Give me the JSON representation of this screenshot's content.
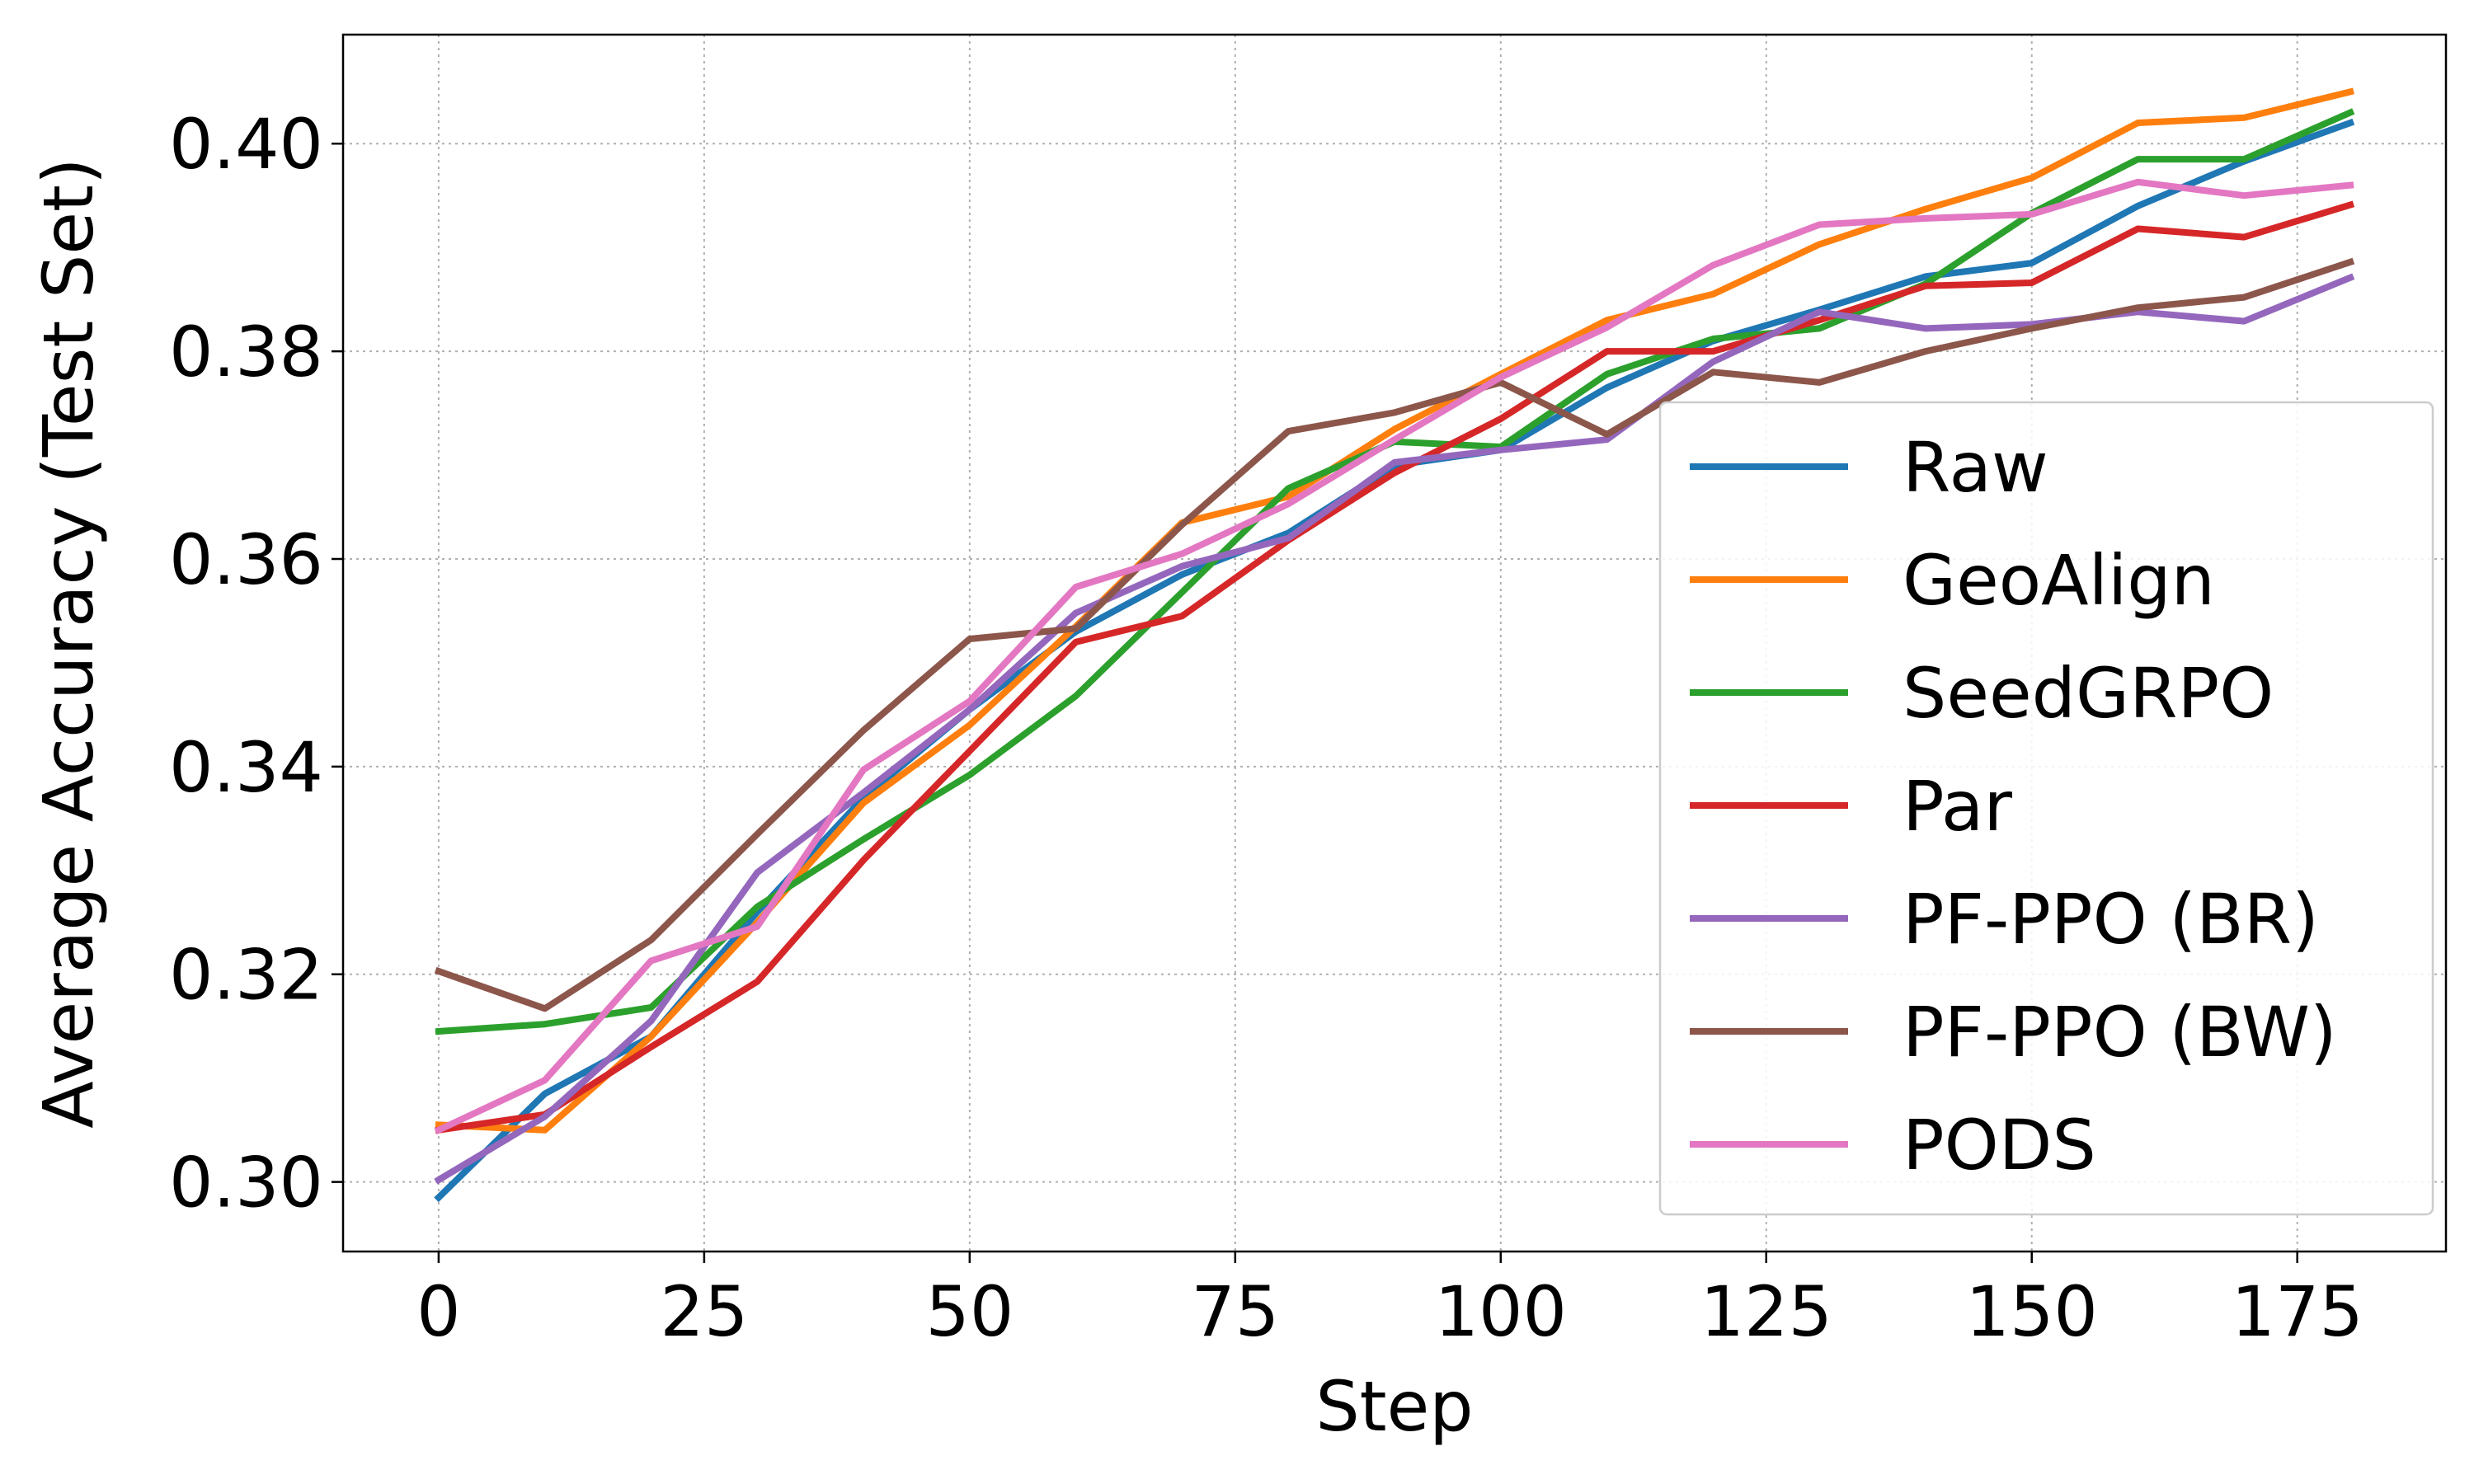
{
  "chart_data": {
    "type": "line",
    "title": "",
    "xlabel": "Step",
    "ylabel": "Average Accuracy (Test Set)",
    "xlim": [
      -9,
      189
    ],
    "ylim": [
      0.2933,
      0.4105
    ],
    "xticks": [
      0,
      25,
      50,
      75,
      100,
      125,
      150,
      175
    ],
    "yticks": [
      0.3,
      0.32,
      0.34,
      0.36,
      0.38,
      0.4
    ],
    "xtick_labels": [
      "0",
      "25",
      "50",
      "75",
      "100",
      "125",
      "150",
      "175"
    ],
    "ytick_labels": [
      "0.30",
      "0.32",
      "0.34",
      "0.36",
      "0.38",
      "0.40"
    ],
    "grid": true,
    "legend_position": "center-right",
    "x": [
      0,
      10,
      20,
      30,
      40,
      50,
      60,
      70,
      80,
      90,
      100,
      110,
      120,
      130,
      140,
      150,
      160,
      170,
      180
    ],
    "series": [
      {
        "name": "Raw",
        "color": "#1f77b4",
        "values": [
          0.2985,
          0.3085,
          0.314,
          0.326,
          0.337,
          0.3455,
          0.353,
          0.3585,
          0.3625,
          0.369,
          0.3705,
          0.3765,
          0.381,
          0.384,
          0.3872,
          0.3885,
          0.394,
          0.3983,
          0.402
        ]
      },
      {
        "name": "GeoAlign",
        "color": "#ff7f0e",
        "values": [
          0.3055,
          0.305,
          0.314,
          0.325,
          0.3365,
          0.344,
          0.3535,
          0.3635,
          0.366,
          0.3725,
          0.3778,
          0.383,
          0.3855,
          0.3903,
          0.3937,
          0.3967,
          0.402,
          0.4025,
          0.405
        ]
      },
      {
        "name": "SeedGRPO",
        "color": "#2ca02c",
        "values": [
          0.3145,
          0.3152,
          0.3168,
          0.3265,
          0.333,
          0.3392,
          0.3468,
          0.3568,
          0.3668,
          0.3713,
          0.3708,
          0.3778,
          0.3812,
          0.3822,
          0.3865,
          0.3933,
          0.3985,
          0.3985,
          0.403
        ]
      },
      {
        "name": "Par",
        "color": "#d62728",
        "values": [
          0.305,
          0.3065,
          0.313,
          0.3193,
          0.331,
          0.3415,
          0.352,
          0.3545,
          0.3618,
          0.3683,
          0.3735,
          0.38,
          0.38,
          0.383,
          0.3863,
          0.3866,
          0.3918,
          0.391,
          0.3941
        ]
      },
      {
        "name": "PF-PPO (BR)",
        "color": "#9467bd",
        "values": [
          0.3002,
          0.3063,
          0.3155,
          0.3298,
          0.3375,
          0.3455,
          0.3548,
          0.3593,
          0.362,
          0.3693,
          0.3705,
          0.3715,
          0.379,
          0.3838,
          0.3822,
          0.3826,
          0.3838,
          0.3829,
          0.3871
        ]
      },
      {
        "name": "PF-PPO (BW)",
        "color": "#8c564b",
        "values": [
          0.3203,
          0.3167,
          0.3233,
          0.3335,
          0.3435,
          0.3523,
          0.3533,
          0.3633,
          0.3723,
          0.3741,
          0.377,
          0.372,
          0.378,
          0.377,
          0.38,
          0.3822,
          0.3842,
          0.3852,
          0.3886
        ]
      },
      {
        "name": "PODS",
        "color": "#e377c2",
        "values": [
          0.305,
          0.3098,
          0.3213,
          0.3246,
          0.3397,
          0.3463,
          0.3573,
          0.3605,
          0.3653,
          0.3715,
          0.3775,
          0.3823,
          0.3883,
          0.3922,
          0.3928,
          0.3932,
          0.3963,
          0.395,
          0.396
        ]
      }
    ]
  }
}
